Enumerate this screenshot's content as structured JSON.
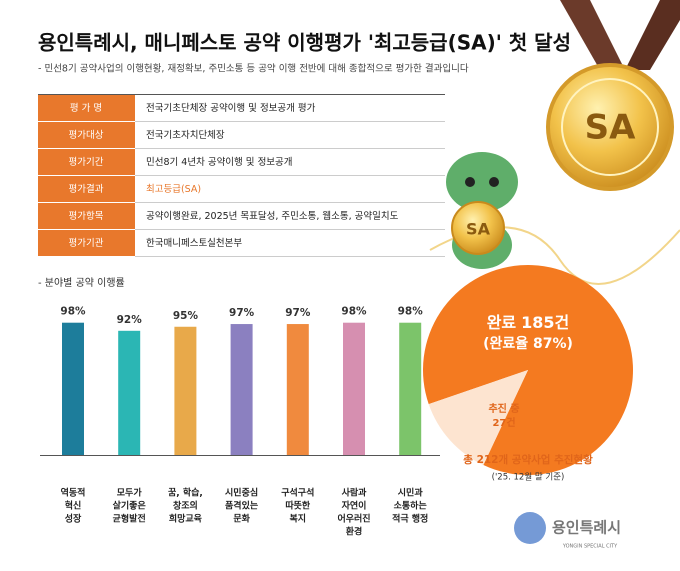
{
  "header": {
    "title": "용인특례시, 매니페스토 공약 이행평가 '최고등급(SA)' 첫 달성",
    "subtitle": "- 민선8기 공약사업의 이행현황, 재정확보, 주민소통 등 공약 이행 전반에 대해 종합적으로 평가한 결과입니다"
  },
  "table": {
    "rows": [
      [
        "평 가 명",
        "전국기초단체장 공약이행 및 정보공개 평가"
      ],
      [
        "평가대상",
        "전국기초자치단체장"
      ],
      [
        "평가기간",
        "민선8기 4년차 공약이행 및 정보공개"
      ],
      [
        "평가결과",
        "최고등급(SA)"
      ],
      [
        "평가항목",
        "공약이행완료, 2025년 목표달성, 주민소통, 웹소통, 공약일치도"
      ],
      [
        "평가기관",
        "한국매니페스토실천본부"
      ]
    ],
    "highlight_color": "#e8782c"
  },
  "medal_text": "SA",
  "section_label": "- 분야별 공약 이행률",
  "logo": {
    "name": "용인특례시",
    "sub": "YONGIN SPECIAL CITY"
  },
  "chart_data": [
    {
      "type": "bar",
      "categories": [
        [
          "역동적",
          "혁신",
          "성장"
        ],
        [
          "모두가",
          "살기좋은",
          "균형발전"
        ],
        [
          "꿈, 학습,",
          "창조의",
          "희망교육"
        ],
        [
          "시민중심",
          "품격있는",
          "문화"
        ],
        [
          "구석구석",
          "따뜻한",
          "복지"
        ],
        [
          "사람과",
          "자연이",
          "어우러진",
          "환경"
        ],
        [
          "시민과",
          "소통하는",
          "적극 행정"
        ]
      ],
      "values": [
        98,
        92,
        95,
        97,
        97,
        98,
        98
      ],
      "value_labels": [
        "98%",
        "92%",
        "95%",
        "97%",
        "97%",
        "98%",
        "98%"
      ],
      "colors": [
        "#1d7d9b",
        "#2bb6b4",
        "#e8a94a",
        "#8b80c0",
        "#f08a3e",
        "#d68fb0",
        "#7cc46a"
      ],
      "ylim": [
        0,
        100
      ]
    },
    {
      "type": "pie",
      "categories": [
        "완료",
        "추진 중"
      ],
      "values": [
        185,
        27
      ],
      "value_labels": [
        "185건",
        "27건"
      ],
      "colors": [
        "#f47a20",
        "#fde4d0"
      ],
      "rate_label": "(완료율 87%)",
      "caption": "총 212개 공약사업 추진현황",
      "note": "('25. 12월 말 기준)"
    }
  ]
}
